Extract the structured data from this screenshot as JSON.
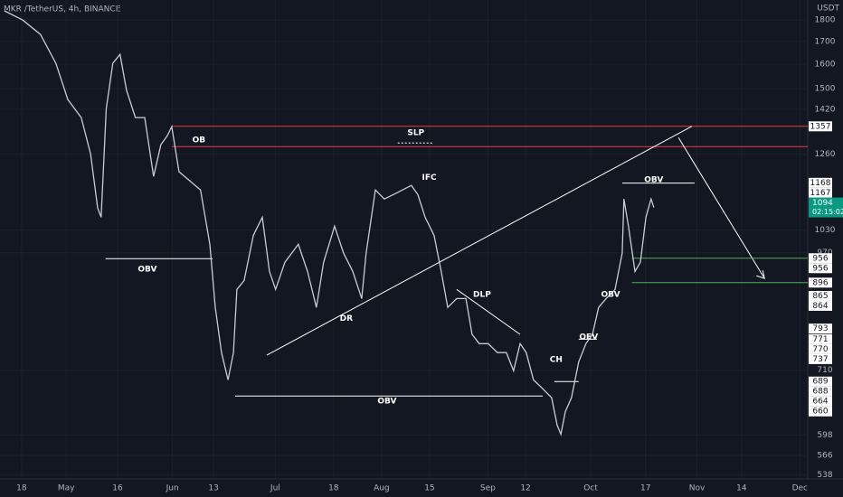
{
  "chart_data": {
    "type": "line",
    "title": "MKR /TetherUS, 4h, BINANCE",
    "currency": "USDT",
    "yscale": "log",
    "color": "#c9ccd4",
    "x": [
      103.0,
      108.3,
      113.5,
      118.0,
      121.5,
      125.4,
      128.1,
      130.2,
      131.2,
      132.7,
      134.6,
      136.7,
      138.6,
      141.2,
      143.9,
      146.5,
      148.6,
      150.5,
      151.8,
      153.9,
      157.1,
      160.2,
      162.9,
      164.5,
      166.3,
      168.2,
      169.8,
      170.8,
      172.9,
      175.6,
      178.2,
      180.3,
      182.1,
      184.8,
      188.7,
      191.4,
      194.0,
      196.1,
      199.3,
      201.9,
      204.6,
      207.2,
      208.5,
      211.2,
      213.8,
      216.4,
      219.1,
      221.7,
      223.6,
      225.7,
      228.3,
      230.4,
      232.3,
      234.9,
      237.6,
      239.4,
      241.5,
      244.1,
      246.8,
      249.4,
      251.5,
      253.4,
      255.2,
      257.3,
      260.0,
      262.6,
      264.2,
      265.3,
      266.6,
      268.4,
      270.5,
      272.6,
      274.5,
      276.3,
      278.5,
      281.1,
      283.2,
      283.7,
      285.0,
      286.9,
      288.5,
      290.1,
      291.6,
      292.4
    ],
    "values": [
      1844,
      1800,
      1732,
      1604,
      1457,
      1389,
      1262,
      1092,
      1066,
      1423,
      1604,
      1643,
      1493,
      1389,
      1389,
      1188,
      1292,
      1324,
      1356,
      1203,
      1174,
      1146,
      992,
      839,
      744,
      692,
      744,
      880,
      901,
      1016,
      1066,
      923,
      880,
      946,
      992,
      923,
      839,
      946,
      1041,
      969,
      923,
      859,
      969,
      1146,
      1119,
      1132,
      1146,
      1160,
      1132,
      1066,
      1016,
      923,
      839,
      859,
      859,
      781,
      762,
      762,
      744,
      744,
      709,
      762,
      744,
      692,
      676,
      660,
      614,
      599,
      636,
      660,
      726,
      762,
      781,
      839,
      859,
      880,
      969,
      1119,
      1041,
      923,
      946,
      1066,
      1119,
      1094
    ],
    "xlim": [
      101.7,
      337.3
    ],
    "ylim": [
      532,
      1898
    ],
    "xticks": [
      {
        "value": 108,
        "label": "18"
      },
      {
        "value": 121,
        "label": "May"
      },
      {
        "value": 136,
        "label": "16"
      },
      {
        "value": 152,
        "label": "Jun"
      },
      {
        "value": 164,
        "label": "13"
      },
      {
        "value": 182,
        "label": "Jul"
      },
      {
        "value": 199,
        "label": "18"
      },
      {
        "value": 213,
        "label": "Aug"
      },
      {
        "value": 227,
        "label": "15"
      },
      {
        "value": 244,
        "label": "Sep"
      },
      {
        "value": 255,
        "label": "12"
      },
      {
        "value": 274,
        "label": "Oct"
      },
      {
        "value": 290,
        "label": "17"
      },
      {
        "value": 305,
        "label": "Nov"
      },
      {
        "value": 318,
        "label": "14"
      },
      {
        "value": 335,
        "label": "Dec"
      }
    ],
    "yticks": [
      1800,
      1700,
      1600,
      1500,
      1420,
      1260,
      1030,
      970,
      710,
      598,
      566,
      538
    ],
    "price_labels": [
      1357,
      1168,
      1167,
      956,
      956,
      896,
      865,
      864,
      793,
      771,
      770,
      737,
      689,
      688,
      664,
      660
    ],
    "current_price": 1094,
    "countdown": "02:15:02",
    "drawings": [
      {
        "from": [
          132.5,
          955
        ],
        "to": [
          163.7,
          955
        ],
        "color": "#ffffff"
      },
      {
        "from": [
          170.3,
          663
        ],
        "to": [
          260.0,
          663
        ],
        "color": "#ffffff"
      },
      {
        "from": [
          151.8,
          1357
        ],
        "to": [
          337.3,
          1357
        ],
        "color": "#f23645"
      },
      {
        "from": [
          151.8,
          1286
        ],
        "to": [
          337.3,
          1286
        ],
        "color": "#f23645"
      },
      {
        "from": [
          179.5,
          739
        ],
        "to": [
          303.5,
          1357
        ],
        "color": "#ffffff"
      },
      {
        "from": [
          299.6,
          1317
        ],
        "to": [
          324.7,
          906
        ],
        "color": "#ffffff"
      },
      {
        "from": [
          283.2,
          1167
        ],
        "to": [
          304.3,
          1167
        ],
        "color": "#ffffff"
      },
      {
        "from": [
          286.0,
          956
        ],
        "to": [
          337.3,
          956
        ],
        "color": "#4caf50"
      },
      {
        "from": [
          286.0,
          896
        ],
        "to": [
          337.3,
          896
        ],
        "color": "#4caf50"
      },
      {
        "from": [
          234.9,
          880
        ],
        "to": [
          253.4,
          781
        ],
        "color": "#ffffff"
      },
      {
        "from": [
          263.4,
          689
        ],
        "to": [
          270.5,
          689
        ],
        "color": "#ffffff"
      },
      {
        "from": [
          270.5,
          771
        ],
        "to": [
          275.8,
          771
        ],
        "color": "#ffffff"
      }
    ],
    "annotations": [
      {
        "text": "OB",
        "x": 159.7,
        "y": 1308
      },
      {
        "text": "SLP",
        "x": 223.0,
        "y": 1333
      },
      {
        "text": "IFC",
        "x": 226.9,
        "y": 1185
      },
      {
        "text": "OBV",
        "x": 144.7,
        "y": 928
      },
      {
        "text": "DR",
        "x": 202.7,
        "y": 815
      },
      {
        "text": "DLP",
        "x": 242.3,
        "y": 868
      },
      {
        "text": "CH",
        "x": 263.9,
        "y": 730
      },
      {
        "text": "OBV",
        "x": 214.6,
        "y": 654
      },
      {
        "text": "OEV",
        "x": 273.4,
        "y": 775
      },
      {
        "text": "OBV",
        "x": 279.8,
        "y": 868
      },
      {
        "text": "OBV",
        "x": 292.4,
        "y": 1177
      }
    ]
  }
}
